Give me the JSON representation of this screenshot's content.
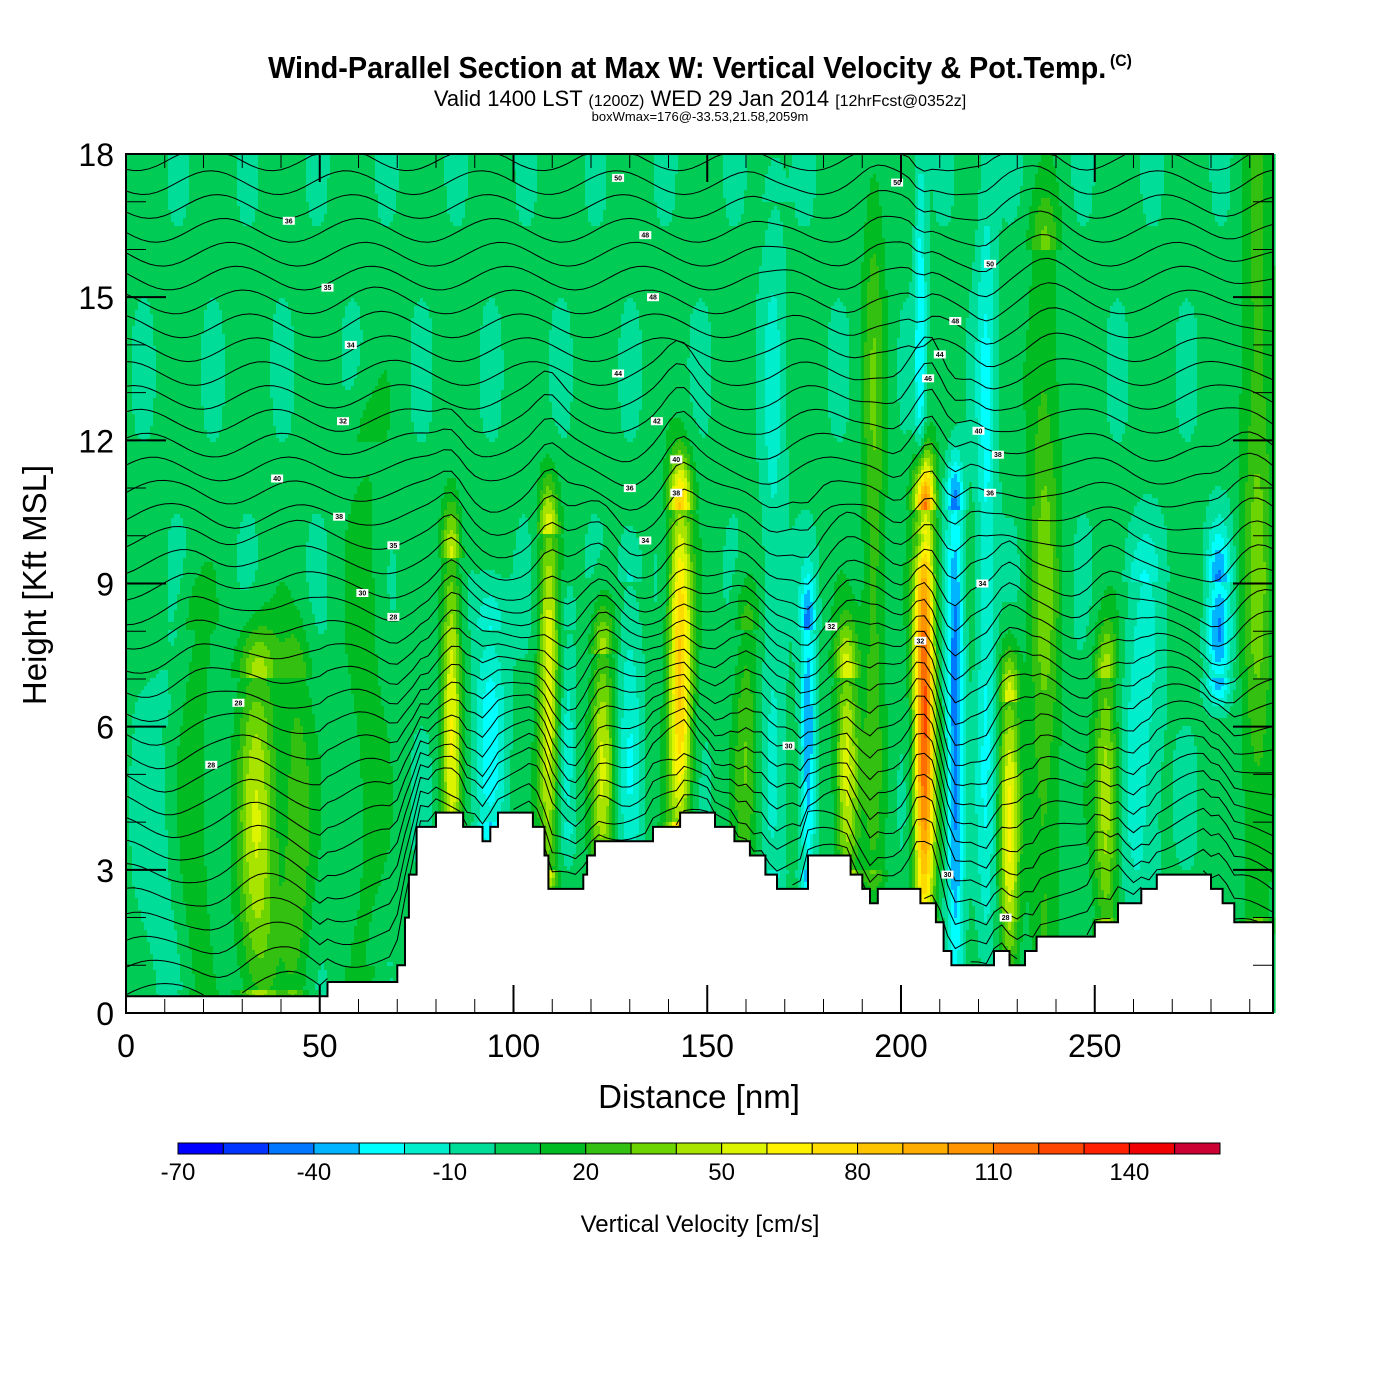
{
  "header": {
    "title": "Wind-Parallel Section at Max W: Vertical Velocity & Pot.Temp.",
    "copyright": "(C)",
    "valid_prefix": "Valid 1400 LST",
    "valid_utc": "(1200Z)",
    "valid_date": "WED 29 Jan 2014",
    "forecast": "[12hrFcst@0352z]",
    "box_info": "boxWmax=176@-33.53,21.58,2059m"
  },
  "chart_data": {
    "type": "heatmap",
    "title": "Wind-Parallel Section at Max W: Vertical Velocity & Pot.Temp.",
    "xlabel": "Distance [nm]",
    "ylabel": "Height [Kft MSL]",
    "xlim": [
      0,
      296
    ],
    "ylim": [
      0,
      18
    ],
    "xticks": [
      0,
      50,
      100,
      150,
      200,
      250
    ],
    "xtick_labels": [
      "0",
      "50",
      "100",
      "150",
      "200",
      "250"
    ],
    "x_minor_step": 10,
    "yticks": [
      0,
      3,
      6,
      9,
      12,
      15,
      18
    ],
    "ytick_labels": [
      "0",
      "3",
      "6",
      "9",
      "12",
      "15",
      "18"
    ],
    "colorbar": {
      "label": "Vertical Velocity [cm/s]",
      "bounds": [
        -70,
        160
      ],
      "step": 10,
      "tick_values": [
        -70,
        -40,
        -10,
        20,
        50,
        80,
        110,
        140
      ],
      "tick_labels": [
        "-70",
        "-40",
        "-10",
        "20",
        "50",
        "80",
        "110",
        "140"
      ],
      "colors": [
        "#0000ff",
        "#0033ff",
        "#0077ff",
        "#00b4ff",
        "#00ffff",
        "#00eecc",
        "#00dd99",
        "#00cc55",
        "#00bb22",
        "#33c010",
        "#6cd400",
        "#a8e400",
        "#dcf400",
        "#fff200",
        "#ffdc00",
        "#ffc400",
        "#ffae00",
        "#ff9400",
        "#ff6e00",
        "#ff4600",
        "#ff2000",
        "#f00000",
        "#cc0033"
      ]
    },
    "vertical_velocity_plumes": [
      {
        "x": 8,
        "width": 5,
        "z0": 0,
        "z1": 6,
        "w": -8
      },
      {
        "x": 18,
        "width": 4,
        "z0": 0.5,
        "z1": 8,
        "w": 15
      },
      {
        "x": 34,
        "width": 5,
        "z0": 0.5,
        "z1": 7,
        "w": 45
      },
      {
        "x": 44,
        "width": 4,
        "z0": 0.5,
        "z1": 7,
        "w": 25
      },
      {
        "x": 62,
        "width": 5,
        "z0": 1,
        "z1": 12,
        "w": 12
      },
      {
        "x": 84,
        "width": 2.5,
        "z0": 3,
        "z1": 9.5,
        "w": 55
      },
      {
        "x": 94,
        "width": 4,
        "z0": 4,
        "z1": 8,
        "w": -28
      },
      {
        "x": 109,
        "width": 2.5,
        "z0": 3,
        "z1": 10,
        "w": 55
      },
      {
        "x": 114,
        "width": 2,
        "z0": 4,
        "z1": 8,
        "w": -15
      },
      {
        "x": 123,
        "width": 3,
        "z0": 3,
        "z1": 7.5,
        "w": 45
      },
      {
        "x": 130,
        "width": 3,
        "z0": 3,
        "z1": 9,
        "w": -20
      },
      {
        "x": 143,
        "width": 3,
        "z0": 4,
        "z1": 10.5,
        "w": 80
      },
      {
        "x": 160,
        "width": 3,
        "z0": 3,
        "z1": 8,
        "w": 25
      },
      {
        "x": 167,
        "width": 3,
        "z0": 3,
        "z1": 17,
        "w": -15
      },
      {
        "x": 176,
        "width": 2,
        "z0": 3,
        "z1": 8,
        "w": -45
      },
      {
        "x": 186,
        "width": 3,
        "z0": 3,
        "z1": 7,
        "w": 55
      },
      {
        "x": 193,
        "width": 3,
        "z0": 3,
        "z1": 18,
        "w": 25
      },
      {
        "x": 206,
        "width": 2.6,
        "z0": 2,
        "z1": 10.5,
        "w": 120
      },
      {
        "x": 205,
        "width": 1.5,
        "z0": 10,
        "z1": 18,
        "w": -30
      },
      {
        "x": 214,
        "width": 2.2,
        "z0": 1,
        "z1": 10.5,
        "w": -50
      },
      {
        "x": 222,
        "width": 2.5,
        "z0": 1,
        "z1": 18,
        "w": -25
      },
      {
        "x": 228,
        "width": 2.5,
        "z0": 1,
        "z1": 6.5,
        "w": 55
      },
      {
        "x": 237,
        "width": 4,
        "z0": 1,
        "z1": 16,
        "w": 28
      },
      {
        "x": 253,
        "width": 3,
        "z0": 2,
        "z1": 7,
        "w": 45
      },
      {
        "x": 262,
        "width": 5,
        "z0": 2,
        "z1": 9,
        "w": -20
      },
      {
        "x": 282,
        "width": 3,
        "z0": 7,
        "z1": 9,
        "w": -40
      },
      {
        "x": 292,
        "width": 4,
        "z0": 2,
        "z1": 18,
        "w": 28
      }
    ],
    "terrain_profile": {
      "distance_nm": [
        0,
        51,
        52,
        70,
        72,
        73,
        75,
        76,
        80,
        87,
        92,
        94,
        96,
        105,
        108,
        109,
        118,
        119,
        121,
        126,
        136,
        143,
        152,
        157,
        161,
        165,
        168,
        176,
        187,
        190,
        192,
        194,
        200,
        205,
        209,
        211,
        213,
        224,
        228,
        232,
        235,
        246,
        250,
        256,
        262,
        266,
        270,
        280,
        283,
        286,
        291,
        296
      ],
      "height_kft": [
        0.35,
        0.35,
        0.65,
        1.0,
        2.0,
        2.9,
        3.9,
        3.9,
        4.2,
        3.9,
        3.6,
        3.9,
        4.2,
        3.9,
        3.3,
        2.6,
        2.9,
        3.3,
        3.6,
        3.6,
        3.9,
        4.2,
        3.9,
        3.6,
        3.3,
        2.9,
        2.6,
        3.3,
        2.9,
        2.6,
        2.3,
        2.6,
        2.6,
        2.3,
        1.9,
        1.3,
        1.0,
        1.3,
        1.0,
        1.3,
        1.6,
        1.6,
        1.9,
        2.3,
        2.6,
        2.9,
        2.9,
        2.6,
        2.3,
        1.9,
        1.9,
        1.9
      ]
    },
    "potential_temperature_contours": {
      "interval": 1,
      "labels": [
        "28",
        "30",
        "32",
        "34",
        "35",
        "36",
        "38",
        "40",
        "42",
        "44",
        "46",
        "48",
        "50"
      ]
    }
  }
}
